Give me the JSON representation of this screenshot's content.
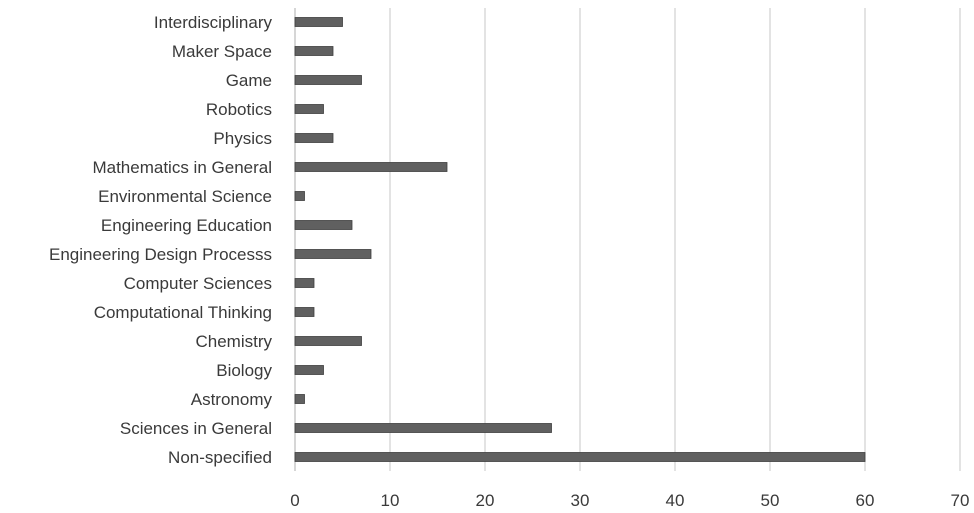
{
  "chart_data": {
    "type": "bar",
    "orientation": "horizontal",
    "title": "",
    "xlabel": "",
    "ylabel": "",
    "categories": [
      "Interdisciplinary",
      "Maker Space",
      "Game",
      "Robotics",
      "Physics",
      "Mathematics in General",
      "Environmental Science",
      "Engineering Education",
      "Engineering Design Processs",
      "Computer Sciences",
      "Computational Thinking",
      "Chemistry",
      "Biology",
      "Astronomy",
      "Sciences in General",
      "Non-specified"
    ],
    "values": [
      5,
      4,
      7,
      3,
      4,
      16,
      1,
      6,
      8,
      2,
      2,
      7,
      3,
      1,
      27,
      60
    ],
    "xlim": [
      0,
      70
    ],
    "x_ticks": [
      "0",
      "10",
      "20",
      "30",
      "40",
      "50",
      "60",
      "70"
    ],
    "grid": "vertical",
    "legend": "none",
    "colors": {
      "bar_fill": "#606060",
      "bar_stroke": "#3f3f3f",
      "grid": "#d4d4d4",
      "text": "#3a3a3a"
    }
  }
}
